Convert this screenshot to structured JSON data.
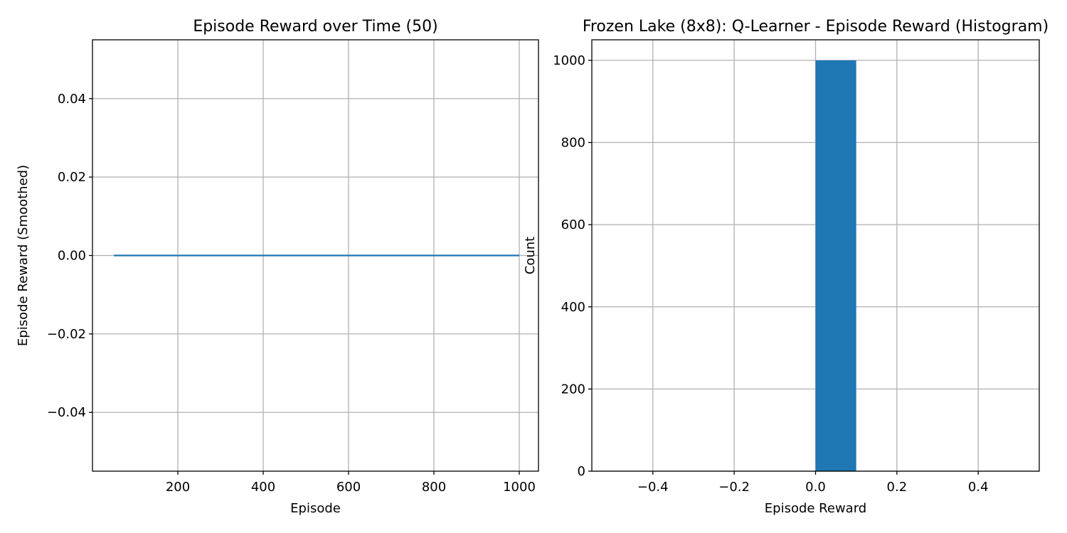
{
  "chart_data": [
    {
      "type": "line",
      "title": "Episode Reward over Time (50)",
      "xlabel": "Episode",
      "ylabel": "Episode Reward (Smoothed)",
      "xlim": [
        0,
        1045
      ],
      "ylim": [
        -0.055,
        0.055
      ],
      "xticks": [
        200,
        400,
        600,
        800,
        1000
      ],
      "yticks": [
        -0.04,
        -0.02,
        0.0,
        0.02,
        0.04
      ],
      "xtick_labels": [
        "200",
        "400",
        "600",
        "800",
        "1000"
      ],
      "ytick_labels": [
        "−0.04",
        "−0.02",
        "0.00",
        "0.02",
        "0.04"
      ],
      "grid": true,
      "series": [
        {
          "color": "#1f77b4",
          "x": [
            50,
            1000
          ],
          "y": [
            0.0,
            0.0
          ]
        }
      ]
    },
    {
      "type": "bar",
      "title": "Frozen Lake (8x8): Q-Learner - Episode Reward (Histogram)",
      "xlabel": "Episode Reward",
      "ylabel": "Count",
      "xlim": [
        -0.55,
        0.55
      ],
      "ylim": [
        0,
        1050
      ],
      "xticks": [
        -0.4,
        -0.2,
        0.0,
        0.2,
        0.4
      ],
      "yticks": [
        0,
        200,
        400,
        600,
        800,
        1000
      ],
      "xtick_labels": [
        "−0.4",
        "−0.2",
        "0.0",
        "0.2",
        "0.4"
      ],
      "ytick_labels": [
        "0",
        "200",
        "400",
        "600",
        "800",
        "1000"
      ],
      "grid": true,
      "bars": [
        {
          "x0": 0.0,
          "x1": 0.1,
          "value": 1000,
          "color": "#1f77b4"
        }
      ]
    }
  ]
}
